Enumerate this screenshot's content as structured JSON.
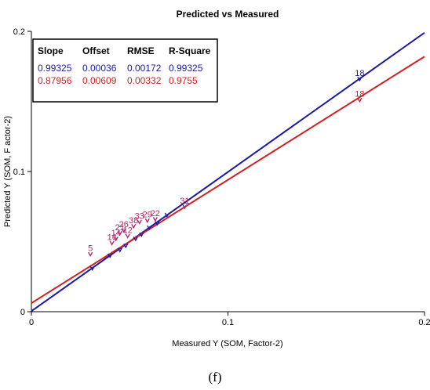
{
  "caption": "(f)",
  "chart_data": {
    "type": "scatter",
    "title": "Predicted vs Measured",
    "xlabel": "Measured Y (SOM, Factor-2)",
    "ylabel": "Predicted Y (SOM, F actor-2)",
    "xlim": [
      0,
      0.2
    ],
    "ylim": [
      0,
      0.2
    ],
    "x_ticks": [
      "0",
      "0.1",
      "0.2"
    ],
    "y_ticks": [
      "0",
      "0.1",
      "0.2"
    ],
    "grid": false,
    "legend_table": {
      "position": "top-left",
      "headers": [
        "Slope",
        "Offset",
        "RMSE",
        "R-Square"
      ],
      "rows": [
        {
          "values": [
            "0.99325",
            "0.00036",
            "0.00172",
            "0.99325"
          ],
          "color": "#1a1aa8"
        },
        {
          "values": [
            "0.87956",
            "0.00609",
            "0.00332",
            "0.9755"
          ],
          "color": "#d42020"
        }
      ]
    },
    "lines": [
      {
        "slope": 0.99325,
        "offset": 0.00036,
        "color": "#1a1aa8"
      },
      {
        "slope": 0.87956,
        "offset": 0.00609,
        "color": "#d42020"
      }
    ],
    "series": [
      {
        "color": "#1a1aa8",
        "points": [
          {
            "x": 0.031,
            "y": 0.031
          },
          {
            "x": 0.04,
            "y": 0.04
          },
          {
            "x": 0.045,
            "y": 0.044
          },
          {
            "x": 0.048,
            "y": 0.047
          },
          {
            "x": 0.053,
            "y": 0.052
          },
          {
            "x": 0.056,
            "y": 0.055
          },
          {
            "x": 0.06,
            "y": 0.06
          },
          {
            "x": 0.064,
            "y": 0.063
          },
          {
            "x": 0.069,
            "y": 0.069
          },
          {
            "x": 0.167,
            "y": 0.166,
            "label": "18"
          }
        ]
      },
      {
        "color": "#b0286a",
        "points": [
          {
            "x": 0.03,
            "y": 0.041,
            "label": "5"
          },
          {
            "x": 0.041,
            "y": 0.049,
            "label": "16"
          },
          {
            "x": 0.043,
            "y": 0.052,
            "label": "14"
          },
          {
            "x": 0.045,
            "y": 0.056,
            "label": "21"
          },
          {
            "x": 0.047,
            "y": 0.058,
            "label": "26"
          },
          {
            "x": 0.049,
            "y": 0.054,
            "label": "12"
          },
          {
            "x": 0.052,
            "y": 0.061,
            "label": "38"
          },
          {
            "x": 0.055,
            "y": 0.064,
            "label": "33"
          },
          {
            "x": 0.059,
            "y": 0.065,
            "label": "29"
          },
          {
            "x": 0.063,
            "y": 0.066,
            "label": "22"
          },
          {
            "x": 0.078,
            "y": 0.075,
            "label": "31"
          }
        ]
      },
      {
        "color": "#d42020",
        "points": [
          {
            "x": 0.167,
            "y": 0.151,
            "label": "18"
          }
        ]
      }
    ]
  }
}
